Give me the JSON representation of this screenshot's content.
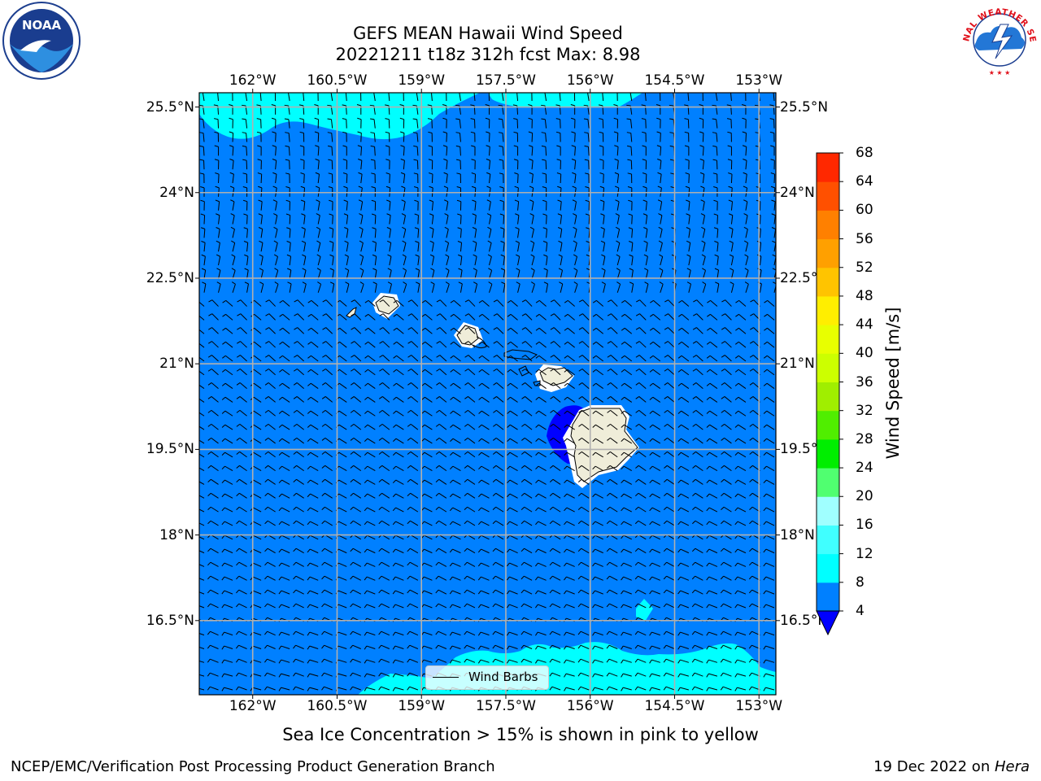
{
  "header": {
    "title_line1": "GEFS MEAN Hawaii Wind Speed",
    "title_line2": "20221211 t18z 312h fcst   Max: 8.98"
  },
  "logos": {
    "noaa_text": "NOAA",
    "nws_text": "NATIONAL WEATHER SERVICE"
  },
  "chart_data": {
    "type": "map",
    "variable": "Wind Speed",
    "units": "m/s",
    "max_value": 8.98,
    "lon_ticks": [
      "162°W",
      "160.5°W",
      "159°W",
      "157.5°W",
      "156°W",
      "154.5°W",
      "153°W"
    ],
    "lon_values": [
      -162,
      -160.5,
      -159,
      -157.5,
      -156,
      -154.5,
      -153
    ],
    "lat_ticks": [
      "25.5°N",
      "24°N",
      "22.5°N",
      "21°N",
      "19.5°N",
      "18°N",
      "16.5°N"
    ],
    "lat_values": [
      25.5,
      24,
      22.5,
      21,
      19.5,
      18,
      16.5
    ],
    "lon_range": [
      -162.95,
      -152.7
    ],
    "lat_range": [
      15.2,
      25.75
    ],
    "grid": true,
    "legend": {
      "label": "Wind Barbs",
      "placement": "bottom-center"
    },
    "colorbar": {
      "label": "Wind Speed [m/s]",
      "levels": [
        4,
        8,
        12,
        16,
        20,
        24,
        28,
        32,
        36,
        40,
        44,
        48,
        52,
        56,
        60,
        64,
        68
      ],
      "colors": [
        "#0080ff",
        "#00ffff",
        "#40ffff",
        "#a0ffff",
        "#50ff70",
        "#00ee00",
        "#50ee00",
        "#a0ee00",
        "#ccff00",
        "#e8ff00",
        "#ffee00",
        "#ffc400",
        "#ffa000",
        "#ff8000",
        "#ff5000",
        "#ff2800"
      ],
      "under_color": "#0000ff",
      "extend": "min"
    },
    "field_colors": {
      "ocean": "#0080ff",
      "cyan": "#00ffff",
      "low": "#0000ff",
      "land": "#efedd9"
    }
  },
  "footer": {
    "caption": "Sea Ice Concentration > 15% is shown in pink to yellow",
    "left_text": "NCEP/EMC/Verification Post Processing Product Generation Branch",
    "date_text": "19 Dec 2022 on ",
    "machine": "Hera"
  }
}
